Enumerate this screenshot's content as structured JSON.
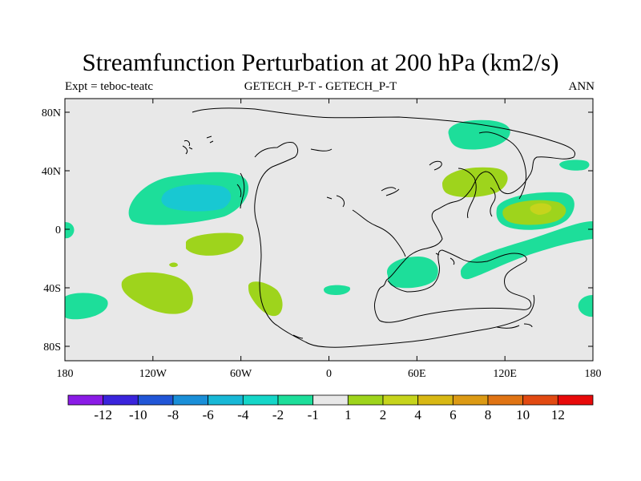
{
  "title": "Streamfunction Perturbation at 200 hPa (km2/s)",
  "subtitle_left": "Expt = teboc-teatc",
  "subtitle_center": "GETECH_P-T - GETECH_P-T",
  "subtitle_right": "ANN",
  "y_ticks": [
    "80N",
    "40N",
    "0",
    "40S",
    "80S"
  ],
  "x_ticks": [
    "180",
    "120W",
    "60W",
    "0",
    "60E",
    "120E",
    "180"
  ],
  "colorbar": {
    "colors": [
      "#8a1be6",
      "#3a24dc",
      "#2156d7",
      "#1a8fd8",
      "#18b8d6",
      "#15d6c8",
      "#1dde9a",
      "#e8e8e8",
      "#9ed41c",
      "#c6d41c",
      "#d8b814",
      "#dc9a14",
      "#e07414",
      "#e24a12",
      "#e80a0a"
    ],
    "labels": [
      "-12",
      "-10",
      "-8",
      "-6",
      "-4",
      "-2",
      "-1",
      "1",
      "2",
      "4",
      "6",
      "8",
      "10",
      "12"
    ]
  },
  "colors": {
    "background": "#e8e8e8",
    "neg_1_2": "#1dde9a",
    "neg_2_4": "#18c8d2",
    "pos_1_2": "#9ed41c",
    "pos_2_4": "#c6d41c",
    "coast": "#000000"
  }
}
